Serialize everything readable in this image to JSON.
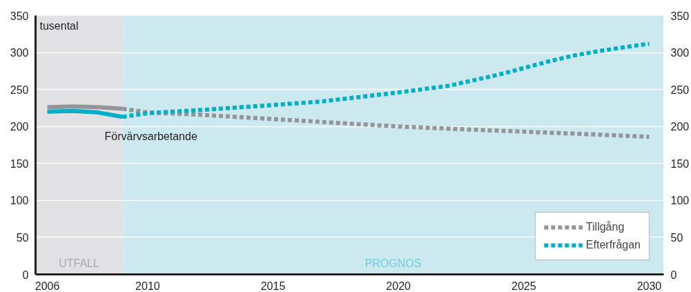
{
  "chart_data": {
    "type": "line",
    "ylabel": "tusental",
    "xlim": [
      2005.53,
      2030.58
    ],
    "xticks": [
      2006,
      2010,
      2015,
      2020,
      2025,
      2030
    ],
    "ylim": [
      0,
      350
    ],
    "yticks": [
      0,
      50,
      100,
      150,
      200,
      250,
      300,
      350
    ],
    "y2lim": [
      0,
      350
    ],
    "y2ticks": [
      0,
      50,
      100,
      150,
      200,
      250,
      300,
      350
    ],
    "grid": "y",
    "legend": "bottom right",
    "marker": "none",
    "series": [
      {
        "color": "#939598",
        "line_style": "solid",
        "x": [
          2006,
          2007,
          2008,
          2009
        ],
        "values": [
          226,
          227,
          226,
          224
        ]
      },
      {
        "color": "#00aec7",
        "line_style": "solid",
        "x": [
          2006,
          2007,
          2008,
          2009
        ],
        "values": [
          220,
          221,
          219,
          213
        ]
      },
      {
        "name": "Tillgång",
        "color": "#939598",
        "line_style": "dotted",
        "x": [
          2009,
          2010,
          2012,
          2015,
          2018,
          2020,
          2022,
          2025,
          2028,
          2030
        ],
        "values": [
          224,
          219,
          216,
          210,
          204,
          200,
          197,
          193,
          189,
          186
        ]
      },
      {
        "name": "Efterfrågan",
        "color": "#00aec7",
        "line_style": "dotted",
        "x": [
          2009,
          2010,
          2012,
          2015,
          2017,
          2018,
          2020,
          2022,
          2024,
          2025,
          2026,
          2027,
          2028,
          2029,
          2030
        ],
        "values": [
          213,
          218,
          222,
          229,
          234,
          238,
          246,
          255,
          270,
          279,
          288,
          296,
          302,
          307,
          312
        ]
      }
    ],
    "bands": [
      {
        "axis": "x",
        "from": 2005.53,
        "to": 2009,
        "label": "UTFALL",
        "color": "#e1e1e3"
      },
      {
        "axis": "x",
        "from": 2009,
        "to": 2030.58,
        "label": "PROGNOS",
        "color": "#cce9ef"
      }
    ],
    "annotations": [
      "Förvärvsarbetande"
    ]
  }
}
